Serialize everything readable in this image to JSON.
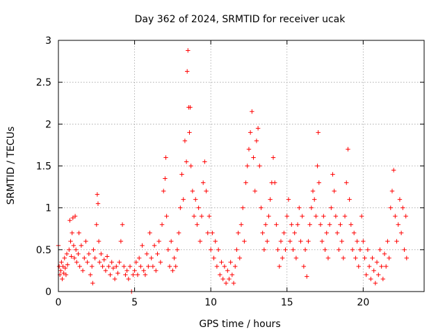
{
  "chart_data": {
    "type": "scatter",
    "title": "Day 362 of 2024, SRMTID for receiver ucak",
    "xlabel": "GPS time / hours",
    "ylabel": "SRMTID / TECUs",
    "xlim": [
      0,
      24
    ],
    "ylim": [
      0,
      3
    ],
    "xticks": [
      0,
      5,
      10,
      15,
      20
    ],
    "xtick_labels": [
      "0",
      "5",
      "10",
      "15",
      "20"
    ],
    "yticks": [
      0,
      0.5,
      1,
      1.5,
      2,
      2.5,
      3
    ],
    "ytick_labels": [
      "0",
      "0.5",
      "1",
      "1.5",
      "2",
      "2.5",
      "3"
    ],
    "grid": true,
    "marker": "plus",
    "color": "#ff0000",
    "series": [
      {
        "name": "SRMTID",
        "points": [
          [
            0.0,
            0.55
          ],
          [
            0.05,
            0.3
          ],
          [
            0.1,
            0.2
          ],
          [
            0.15,
            0.25
          ],
          [
            0.2,
            0.35
          ],
          [
            0.25,
            0.15
          ],
          [
            0.3,
            0.3
          ],
          [
            0.35,
            0.22
          ],
          [
            0.4,
            0.4
          ],
          [
            0.45,
            0.28
          ],
          [
            0.5,
            0.2
          ],
          [
            0.55,
            0.45
          ],
          [
            0.6,
            0.32
          ],
          [
            0.7,
            0.5
          ],
          [
            0.75,
            0.85
          ],
          [
            0.8,
            0.6
          ],
          [
            0.85,
            0.42
          ],
          [
            0.9,
            0.7
          ],
          [
            0.95,
            0.88
          ],
          [
            1.0,
            0.55
          ],
          [
            1.05,
            0.4
          ],
          [
            1.1,
            0.9
          ],
          [
            1.15,
            0.5
          ],
          [
            1.2,
            0.35
          ],
          [
            1.3,
            0.45
          ],
          [
            1.35,
            0.7
          ],
          [
            1.4,
            0.3
          ],
          [
            1.5,
            0.55
          ],
          [
            1.6,
            0.25
          ],
          [
            1.7,
            0.4
          ],
          [
            1.8,
            0.6
          ],
          [
            1.9,
            0.35
          ],
          [
            2.0,
            0.45
          ],
          [
            2.1,
            0.2
          ],
          [
            2.2,
            0.3
          ],
          [
            2.25,
            0.1
          ],
          [
            2.3,
            0.5
          ],
          [
            2.4,
            0.4
          ],
          [
            2.5,
            0.8
          ],
          [
            2.55,
            1.16
          ],
          [
            2.6,
            1.05
          ],
          [
            2.65,
            0.6
          ],
          [
            2.7,
            0.35
          ],
          [
            2.8,
            0.45
          ],
          [
            2.9,
            0.3
          ],
          [
            3.0,
            0.38
          ],
          [
            3.1,
            0.25
          ],
          [
            3.2,
            0.42
          ],
          [
            3.3,
            0.3
          ],
          [
            3.4,
            0.2
          ],
          [
            3.5,
            0.35
          ],
          [
            3.6,
            0.28
          ],
          [
            3.7,
            0.15
          ],
          [
            3.8,
            0.3
          ],
          [
            3.9,
            0.22
          ],
          [
            4.0,
            0.35
          ],
          [
            4.1,
            0.6
          ],
          [
            4.2,
            0.8
          ],
          [
            4.3,
            0.3
          ],
          [
            4.4,
            0.2
          ],
          [
            4.5,
            0.25
          ],
          [
            4.6,
            0.15
          ],
          [
            4.7,
            0.3
          ],
          [
            4.8,
            0.0
          ],
          [
            4.9,
            0.2
          ],
          [
            5.0,
            0.25
          ],
          [
            5.1,
            0.35
          ],
          [
            5.2,
            0.2
          ],
          [
            5.3,
            0.4
          ],
          [
            5.4,
            0.3
          ],
          [
            5.5,
            0.55
          ],
          [
            5.6,
            0.25
          ],
          [
            5.7,
            0.2
          ],
          [
            5.8,
            0.45
          ],
          [
            5.9,
            0.3
          ],
          [
            6.0,
            0.7
          ],
          [
            6.1,
            0.4
          ],
          [
            6.2,
            0.3
          ],
          [
            6.3,
            0.55
          ],
          [
            6.4,
            0.25
          ],
          [
            6.5,
            0.45
          ],
          [
            6.6,
            0.6
          ],
          [
            6.7,
            0.35
          ],
          [
            6.8,
            0.8
          ],
          [
            6.9,
            1.2
          ],
          [
            7.0,
            1.35
          ],
          [
            7.05,
            1.6
          ],
          [
            7.1,
            0.9
          ],
          [
            7.2,
            0.5
          ],
          [
            7.3,
            0.3
          ],
          [
            7.4,
            0.6
          ],
          [
            7.5,
            0.25
          ],
          [
            7.6,
            0.4
          ],
          [
            7.7,
            0.3
          ],
          [
            7.8,
            0.5
          ],
          [
            7.9,
            0.7
          ],
          [
            8.0,
            1.0
          ],
          [
            8.1,
            1.4
          ],
          [
            8.2,
            1.1
          ],
          [
            8.3,
            1.8
          ],
          [
            8.4,
            1.55
          ],
          [
            8.45,
            2.63
          ],
          [
            8.5,
            2.88
          ],
          [
            8.55,
            2.2
          ],
          [
            8.6,
            1.9
          ],
          [
            8.65,
            2.2
          ],
          [
            8.7,
            1.5
          ],
          [
            8.8,
            1.2
          ],
          [
            8.9,
            0.9
          ],
          [
            9.0,
            1.1
          ],
          [
            9.1,
            0.8
          ],
          [
            9.2,
            1.0
          ],
          [
            9.3,
            0.6
          ],
          [
            9.4,
            0.9
          ],
          [
            9.5,
            1.3
          ],
          [
            9.6,
            1.55
          ],
          [
            9.7,
            1.2
          ],
          [
            9.8,
            0.7
          ],
          [
            9.9,
            0.9
          ],
          [
            10.0,
            0.5
          ],
          [
            10.1,
            0.7
          ],
          [
            10.2,
            0.4
          ],
          [
            10.3,
            0.6
          ],
          [
            10.4,
            0.3
          ],
          [
            10.5,
            0.5
          ],
          [
            10.6,
            0.2
          ],
          [
            10.7,
            0.35
          ],
          [
            10.8,
            0.15
          ],
          [
            10.9,
            0.3
          ],
          [
            11.0,
            0.1
          ],
          [
            11.1,
            0.25
          ],
          [
            11.2,
            0.15
          ],
          [
            11.3,
            0.35
          ],
          [
            11.4,
            0.2
          ],
          [
            11.5,
            0.1
          ],
          [
            11.6,
            0.3
          ],
          [
            11.7,
            0.5
          ],
          [
            11.8,
            0.7
          ],
          [
            11.9,
            0.4
          ],
          [
            12.0,
            0.8
          ],
          [
            12.1,
            1.0
          ],
          [
            12.2,
            0.6
          ],
          [
            12.3,
            1.3
          ],
          [
            12.4,
            1.5
          ],
          [
            12.5,
            1.7
          ],
          [
            12.6,
            1.9
          ],
          [
            12.7,
            2.15
          ],
          [
            12.8,
            1.6
          ],
          [
            12.9,
            1.2
          ],
          [
            13.0,
            1.8
          ],
          [
            13.1,
            1.95
          ],
          [
            13.2,
            1.5
          ],
          [
            13.3,
            1.0
          ],
          [
            13.4,
            0.7
          ],
          [
            13.5,
            0.5
          ],
          [
            13.6,
            0.8
          ],
          [
            13.7,
            0.6
          ],
          [
            13.8,
            0.9
          ],
          [
            13.9,
            1.1
          ],
          [
            14.0,
            1.3
          ],
          [
            14.1,
            1.6
          ],
          [
            14.2,
            1.3
          ],
          [
            14.3,
            0.8
          ],
          [
            14.4,
            0.5
          ],
          [
            14.5,
            0.3
          ],
          [
            14.6,
            0.6
          ],
          [
            14.7,
            0.4
          ],
          [
            14.8,
            0.7
          ],
          [
            14.9,
            0.5
          ],
          [
            15.0,
            0.9
          ],
          [
            15.1,
            1.1
          ],
          [
            15.2,
            0.6
          ],
          [
            15.3,
            0.8
          ],
          [
            15.4,
            0.5
          ],
          [
            15.5,
            0.7
          ],
          [
            15.6,
            0.4
          ],
          [
            15.7,
            0.8
          ],
          [
            15.8,
            1.0
          ],
          [
            15.9,
            0.6
          ],
          [
            16.0,
            0.9
          ],
          [
            16.1,
            0.3
          ],
          [
            16.2,
            0.5
          ],
          [
            16.3,
            0.18
          ],
          [
            16.4,
            0.6
          ],
          [
            16.5,
            0.8
          ],
          [
            16.6,
            1.0
          ],
          [
            16.7,
            1.2
          ],
          [
            16.8,
            1.1
          ],
          [
            16.9,
            0.9
          ],
          [
            17.0,
            1.5
          ],
          [
            17.05,
            1.9
          ],
          [
            17.1,
            1.3
          ],
          [
            17.2,
            0.8
          ],
          [
            17.3,
            0.6
          ],
          [
            17.4,
            0.9
          ],
          [
            17.5,
            0.5
          ],
          [
            17.6,
            0.7
          ],
          [
            17.7,
            0.4
          ],
          [
            17.8,
            0.8
          ],
          [
            17.9,
            1.0
          ],
          [
            18.0,
            1.4
          ],
          [
            18.1,
            1.2
          ],
          [
            18.2,
            0.9
          ],
          [
            18.3,
            0.7
          ],
          [
            18.4,
            0.5
          ],
          [
            18.5,
            0.8
          ],
          [
            18.6,
            0.6
          ],
          [
            18.7,
            0.4
          ],
          [
            18.8,
            0.9
          ],
          [
            18.9,
            1.3
          ],
          [
            19.0,
            1.7
          ],
          [
            19.1,
            1.1
          ],
          [
            19.2,
            0.8
          ],
          [
            19.3,
            0.5
          ],
          [
            19.4,
            0.7
          ],
          [
            19.5,
            0.4
          ],
          [
            19.6,
            0.6
          ],
          [
            19.7,
            0.3
          ],
          [
            19.8,
            0.5
          ],
          [
            19.9,
            0.9
          ],
          [
            20.0,
            0.6
          ],
          [
            20.1,
            0.4
          ],
          [
            20.2,
            0.2
          ],
          [
            20.3,
            0.5
          ],
          [
            20.4,
            0.3
          ],
          [
            20.5,
            0.15
          ],
          [
            20.6,
            0.4
          ],
          [
            20.7,
            0.25
          ],
          [
            20.8,
            0.1
          ],
          [
            20.9,
            0.35
          ],
          [
            21.0,
            0.2
          ],
          [
            21.1,
            0.5
          ],
          [
            21.2,
            0.3
          ],
          [
            21.3,
            0.15
          ],
          [
            21.4,
            0.45
          ],
          [
            21.5,
            0.3
          ],
          [
            21.6,
            0.6
          ],
          [
            21.7,
            0.4
          ],
          [
            21.8,
            1.0
          ],
          [
            21.9,
            1.2
          ],
          [
            22.0,
            1.45
          ],
          [
            22.1,
            0.9
          ],
          [
            22.2,
            0.6
          ],
          [
            22.3,
            0.8
          ],
          [
            22.4,
            1.1
          ],
          [
            22.5,
            0.7
          ],
          [
            22.6,
            1.0
          ],
          [
            22.7,
            0.5
          ],
          [
            22.8,
            0.9
          ],
          [
            22.85,
            0.4
          ]
        ]
      }
    ]
  }
}
